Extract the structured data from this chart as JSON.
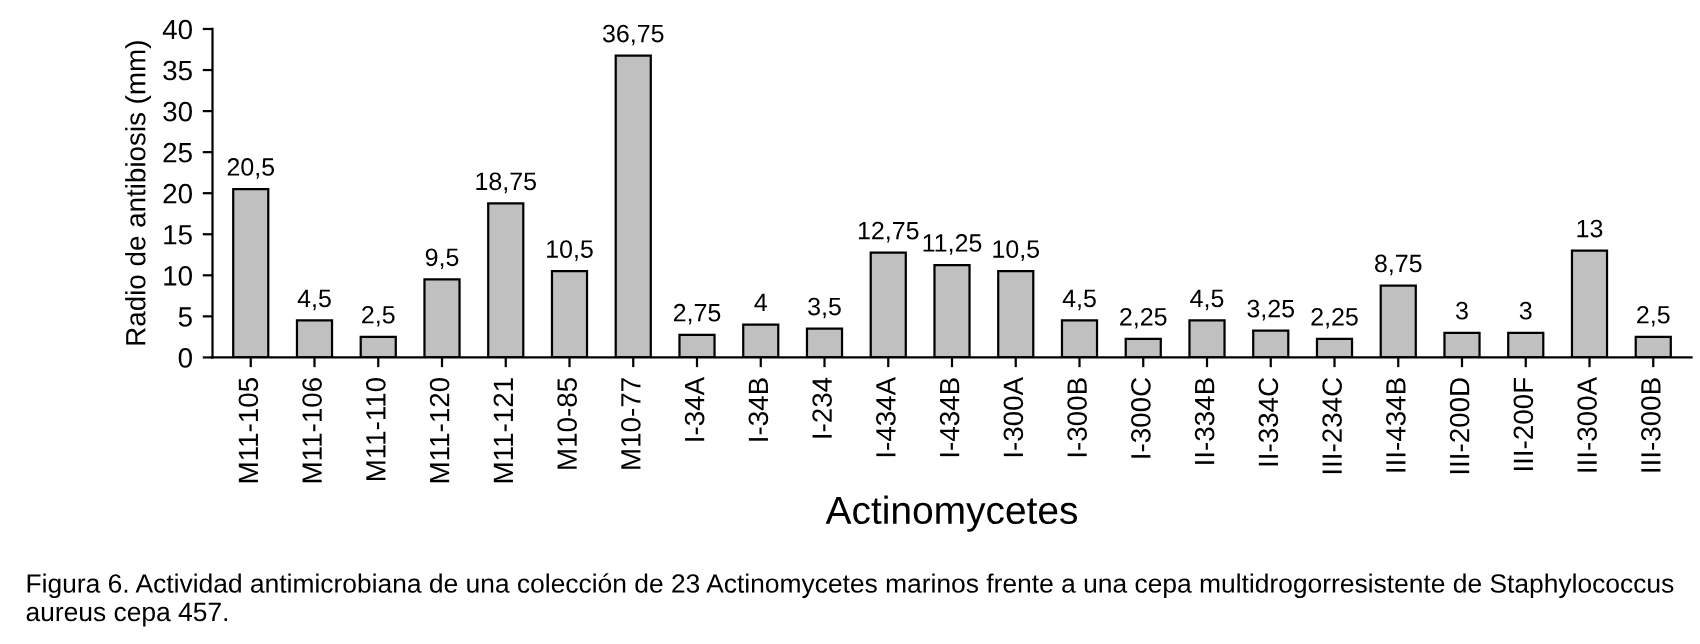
{
  "chart_data": {
    "type": "bar",
    "xlabel": "Actinomycetes",
    "ylabel": "Radio de antibiosis (mm)",
    "categories": [
      "M11-105",
      "M11-106",
      "M11-110",
      "M11-120",
      "M11-121",
      "M10-85",
      "M10-77",
      "I-34A",
      "I-34B",
      "I-234",
      "I-434A",
      "I-434B",
      "I-300A",
      "I-300B",
      "I-300C",
      "II-334B",
      "II-334C",
      "III-234C",
      "III-434B",
      "III-200D",
      "III-200F",
      "III-300A",
      "III-300B"
    ],
    "values": [
      20.5,
      4.5,
      2.5,
      9.5,
      18.75,
      10.5,
      36.75,
      2.75,
      4,
      3.5,
      12.75,
      11.25,
      10.5,
      4.5,
      2.25,
      4.5,
      3.25,
      2.25,
      8.75,
      3,
      3,
      13,
      2.5
    ],
    "value_labels": [
      "20,5",
      "4,5",
      "2,5",
      "9,5",
      "18,75",
      "10,5",
      "36,75",
      "2,75",
      "4",
      "3,5",
      "12,75",
      "11,25",
      "10,5",
      "4,5",
      "2,25",
      "4,5",
      "3,25",
      "2,25",
      "8,75",
      "3",
      "3",
      "13",
      "2,5"
    ],
    "color": "#c0c0c0",
    "ylim": [
      0,
      40
    ],
    "yticks": [
      0,
      5,
      10,
      15,
      20,
      25,
      30,
      35,
      40
    ],
    "grid": false,
    "legend": false,
    "annotations": [
      "Figura 6. Actividad antimicrobiana de una colección de 23 Actinomycetes marinos frente a una cepa multidrogorresistente de Staphylococcus aureus cepa 457."
    ]
  }
}
